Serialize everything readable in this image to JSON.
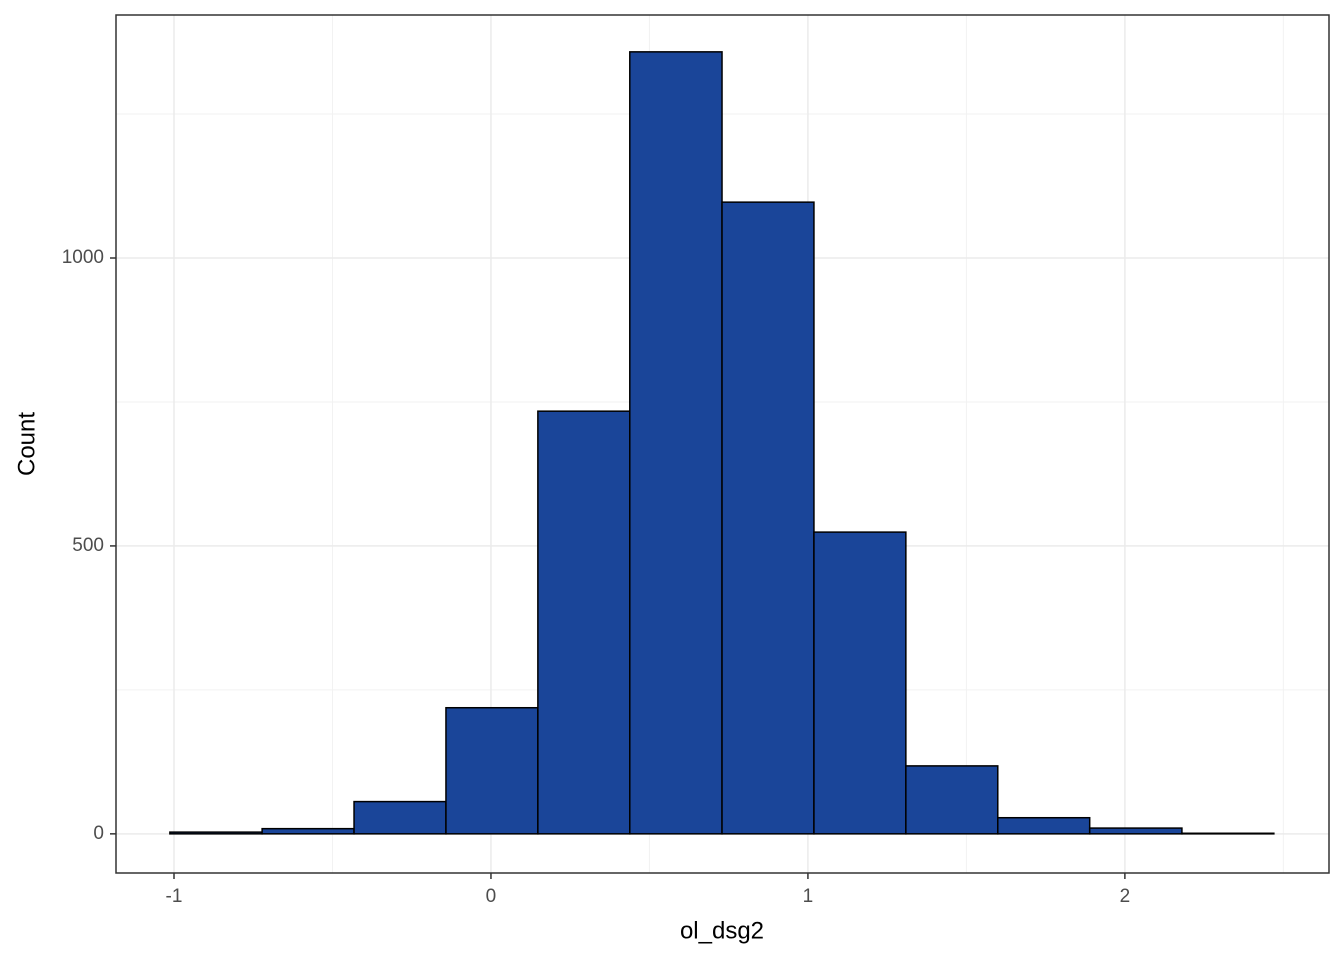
{
  "chart_data": {
    "type": "histogram",
    "x_label": "ol_dsg2",
    "y_label": "Count",
    "bins": [
      -1.013,
      -0.722,
      -0.432,
      -0.142,
      0.148,
      0.438,
      0.729,
      1.019,
      1.309,
      1.599,
      1.889,
      2.18,
      2.47
    ],
    "counts": [
      3,
      9,
      56,
      219,
      734,
      1358,
      1097,
      524,
      118,
      28,
      10,
      1
    ],
    "color": "#1a4599",
    "edge_color": "#000000",
    "xlim": [
      -1.183,
      2.644
    ],
    "ylim": [
      -68,
      1422
    ],
    "xticks": [
      -1,
      0,
      1,
      2
    ],
    "yticks": [
      0,
      500,
      1000
    ],
    "minor_xgrid": [
      -0.5,
      0.5,
      1.5,
      2.5
    ],
    "minor_ygrid": [
      250,
      750,
      1250
    ],
    "grid": true
  }
}
